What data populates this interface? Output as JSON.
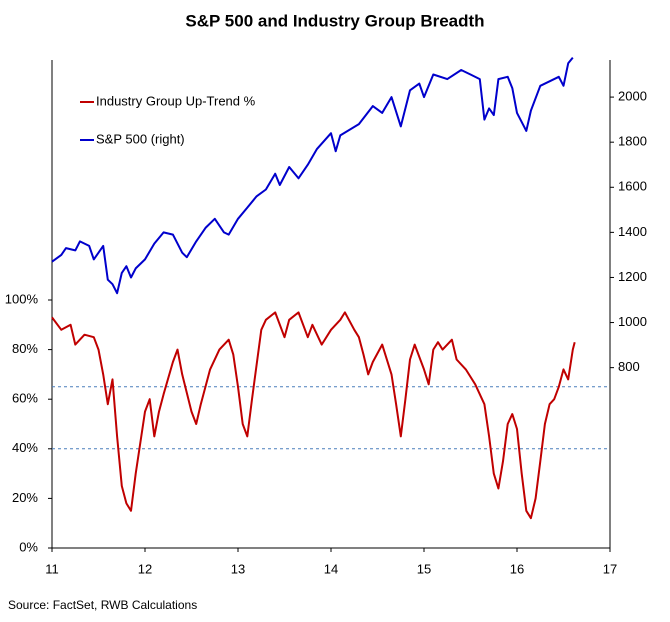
{
  "chart_data": {
    "type": "line",
    "title": "S&P 500 and Industry Group Breadth",
    "source": "Source: FactSet, RWB Calculations",
    "xlim": [
      11,
      17
    ],
    "xticks": [
      11,
      12,
      13,
      14,
      15,
      16,
      17
    ],
    "ylim": [
      0,
      200
    ],
    "yticks": [
      {
        "value": 0,
        "label": "0%"
      },
      {
        "value": 20,
        "label": "20%"
      },
      {
        "value": 40,
        "label": "40%"
      },
      {
        "value": 60,
        "label": "60%"
      },
      {
        "value": 80,
        "label": "80%"
      },
      {
        "value": 100,
        "label": "100%"
      }
    ],
    "y2lim": [
      0,
      2200
    ],
    "y2ticks": [
      800,
      1000,
      1200,
      1400,
      1600,
      1800,
      2000
    ],
    "hlines": [
      65,
      40
    ],
    "hline_color": "#4a7ebb",
    "legend": "upper left",
    "series": [
      {
        "name": "Industry Group Up-Trend %",
        "color": "#c00000",
        "x": [
          11.0,
          11.1,
          11.2,
          11.25,
          11.35,
          11.45,
          11.5,
          11.55,
          11.6,
          11.65,
          11.7,
          11.75,
          11.8,
          11.85,
          11.9,
          12.0,
          12.05,
          12.1,
          12.15,
          12.2,
          12.3,
          12.35,
          12.4,
          12.5,
          12.55,
          12.6,
          12.7,
          12.8,
          12.9,
          12.95,
          13.0,
          13.05,
          13.1,
          13.15,
          13.25,
          13.3,
          13.4,
          13.5,
          13.55,
          13.65,
          13.75,
          13.8,
          13.9,
          14.0,
          14.1,
          14.15,
          14.25,
          14.3,
          14.35,
          14.4,
          14.45,
          14.55,
          14.65,
          14.7,
          14.75,
          14.8,
          14.85,
          14.9,
          15.0,
          15.05,
          15.1,
          15.15,
          15.2,
          15.3,
          15.35,
          15.45,
          15.55,
          15.65,
          15.7,
          15.75,
          15.8,
          15.85,
          15.9,
          15.95,
          16.0,
          16.05,
          16.1,
          16.15,
          16.2,
          16.25,
          16.3,
          16.35,
          16.4,
          16.45,
          16.5,
          16.55,
          16.6,
          16.62
        ],
        "values": [
          93,
          88,
          90,
          82,
          86,
          85,
          80,
          70,
          58,
          68,
          45,
          25,
          18,
          15,
          30,
          55,
          60,
          45,
          55,
          62,
          75,
          80,
          70,
          55,
          50,
          58,
          72,
          80,
          84,
          78,
          65,
          50,
          45,
          60,
          88,
          92,
          95,
          85,
          92,
          95,
          85,
          90,
          82,
          88,
          92,
          95,
          88,
          85,
          78,
          70,
          75,
          82,
          70,
          58,
          45,
          60,
          76,
          82,
          72,
          66,
          80,
          83,
          80,
          84,
          76,
          72,
          66,
          58,
          45,
          30,
          24,
          35,
          50,
          54,
          48,
          30,
          15,
          12,
          20,
          35,
          50,
          58,
          60,
          65,
          72,
          68,
          80,
          83
        ]
      },
      {
        "name": "S&P 500 (right)",
        "color": "#0000cc",
        "axis": "y2",
        "x": [
          11.0,
          11.1,
          11.15,
          11.25,
          11.3,
          11.4,
          11.45,
          11.5,
          11.55,
          11.6,
          11.65,
          11.7,
          11.75,
          11.8,
          11.85,
          11.9,
          12.0,
          12.1,
          12.2,
          12.3,
          12.4,
          12.45,
          12.55,
          12.65,
          12.75,
          12.85,
          12.9,
          13.0,
          13.1,
          13.2,
          13.3,
          13.4,
          13.45,
          13.55,
          13.65,
          13.75,
          13.85,
          14.0,
          14.05,
          14.1,
          14.3,
          14.45,
          14.55,
          14.65,
          14.75,
          14.85,
          14.95,
          15.0,
          15.1,
          15.25,
          15.4,
          15.5,
          15.6,
          15.65,
          15.7,
          15.75,
          15.8,
          15.9,
          15.95,
          16.0,
          16.1,
          16.15,
          16.25,
          16.35,
          16.45,
          16.5,
          16.55,
          16.6
        ],
        "values": [
          1270,
          1300,
          1330,
          1320,
          1360,
          1340,
          1280,
          1310,
          1340,
          1190,
          1170,
          1130,
          1220,
          1250,
          1200,
          1240,
          1280,
          1350,
          1400,
          1390,
          1310,
          1290,
          1360,
          1420,
          1460,
          1400,
          1390,
          1460,
          1510,
          1560,
          1590,
          1660,
          1610,
          1690,
          1640,
          1700,
          1770,
          1840,
          1760,
          1830,
          1880,
          1960,
          1930,
          2000,
          1870,
          2030,
          2060,
          2000,
          2100,
          2080,
          2120,
          2100,
          2080,
          1900,
          1950,
          1920,
          2080,
          2090,
          2040,
          1930,
          1850,
          1940,
          2050,
          2070,
          2090,
          2050,
          2150,
          2175
        ]
      }
    ]
  }
}
